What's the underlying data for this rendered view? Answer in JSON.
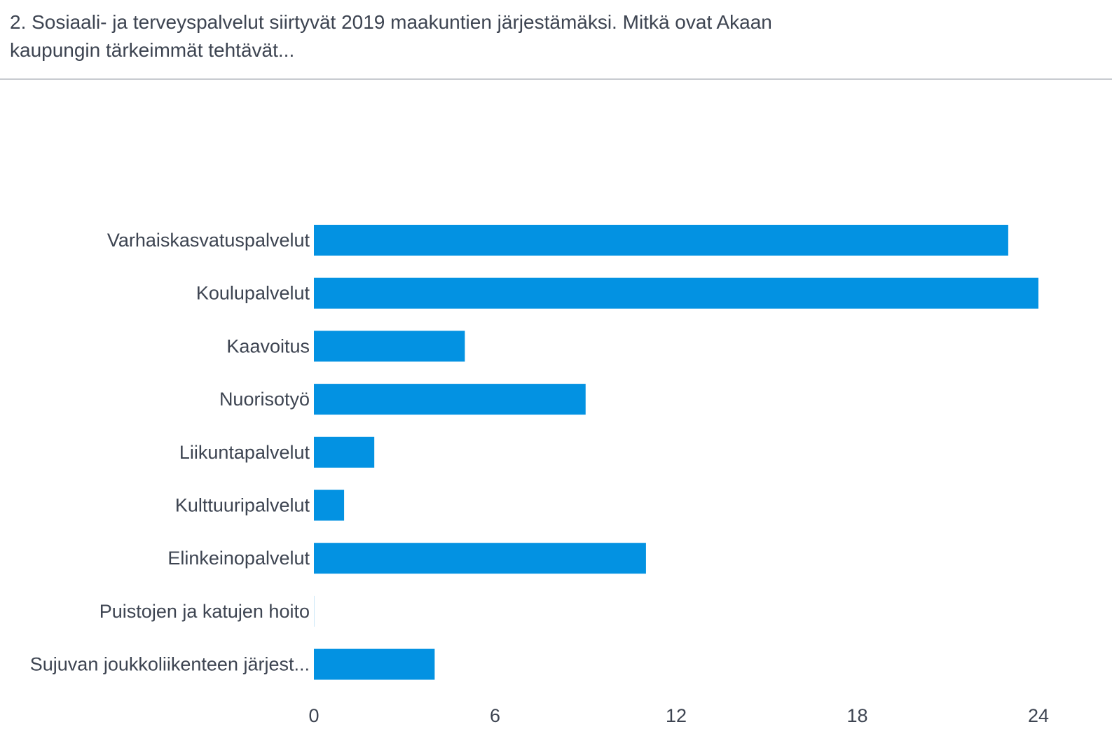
{
  "header": {
    "title": "2. Sosiaali- ja terveyspalvelut siirtyvät 2019 maakuntien järjestämäksi. Mitkä ovat Akaan kaupungin tärkeimmät tehtävät..."
  },
  "chart_data": {
    "type": "bar",
    "orientation": "horizontal",
    "categories": [
      "Varhaiskasvatuspalvelut",
      "Koulupalvelut",
      "Kaavoitus",
      "Nuorisotyö",
      "Liikuntapalvelut",
      "Kulttuuripalvelut",
      "Elinkeinopalvelut",
      "Puistojen ja katujen hoito",
      "Sujuvan joukkoliikenteen järjest..."
    ],
    "values": [
      23,
      24,
      5,
      9,
      2,
      1,
      11,
      0,
      4
    ],
    "x_ticks": [
      0,
      6,
      12,
      18,
      24
    ],
    "xlim": [
      0,
      24
    ],
    "grid": false,
    "bar_color": "#0392e2"
  }
}
